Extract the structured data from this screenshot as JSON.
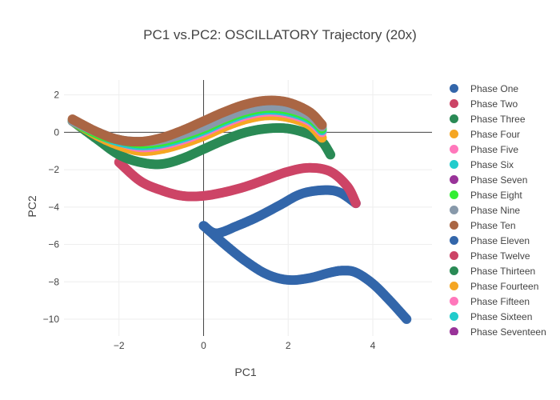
{
  "chart_data": {
    "type": "scatter",
    "title": "PC1 vs.PC2: OSCILLATORY Trajectory (20x)",
    "xlabel": "PC1",
    "ylabel": "PC2",
    "xlim": [
      -3.3,
      5.4
    ],
    "ylim": [
      -10.9,
      2.8
    ],
    "x_ticks": [
      -2,
      0,
      2,
      4
    ],
    "y_ticks": [
      2,
      0,
      -2,
      -4,
      -6,
      -8,
      -10
    ],
    "grid": true,
    "legend_position": "right",
    "series": [
      {
        "name": "Phase One",
        "color": "#3366aa",
        "marker": "circle",
        "x": [
          0.0,
          0.3,
          0.8,
          1.3,
          1.8,
          2.3,
          2.8,
          3.2,
          3.6
        ],
        "y": [
          -5.0,
          -5.4,
          -5.0,
          -4.5,
          -3.9,
          -3.3,
          -3.1,
          -3.2,
          -3.8
        ]
      },
      {
        "name": "Phase Two",
        "color": "#cc4466",
        "marker": "circle",
        "x": [
          -2.0,
          -1.5,
          -1.0,
          -0.5,
          0.0,
          0.5,
          1.0,
          1.5,
          2.0,
          2.5,
          3.0,
          3.4,
          3.6
        ],
        "y": [
          -1.6,
          -2.6,
          -3.1,
          -3.4,
          -3.4,
          -3.2,
          -2.9,
          -2.5,
          -2.1,
          -1.9,
          -2.1,
          -2.9,
          -3.8
        ]
      },
      {
        "name": "Phase Three",
        "color": "#2a8a55",
        "marker": "circle",
        "x": [
          -3.1,
          -2.5,
          -2.0,
          -1.5,
          -1.0,
          -0.5,
          0.0,
          0.5,
          1.0,
          1.5,
          2.0,
          2.5,
          2.8,
          3.0
        ],
        "y": [
          0.6,
          -0.4,
          -1.2,
          -1.6,
          -1.7,
          -1.4,
          -0.9,
          -0.4,
          0.0,
          0.2,
          0.2,
          -0.1,
          -0.5,
          -1.2
        ]
      },
      {
        "name": "Phase Four",
        "color": "#f5a623",
        "marker": "circle",
        "x": [
          -3.1,
          -2.5,
          -2.0,
          -1.5,
          -1.0,
          -0.5,
          0.0,
          0.5,
          1.0,
          1.5,
          2.0,
          2.5,
          2.8
        ],
        "y": [
          0.6,
          -0.2,
          -0.7,
          -1.0,
          -0.9,
          -0.6,
          -0.2,
          0.3,
          0.7,
          0.9,
          0.8,
          0.4,
          -0.3
        ]
      },
      {
        "name": "Phase Five",
        "color": "#ff77bb",
        "marker": "circle",
        "x": [
          -3.1,
          -2.5,
          -2.0,
          -1.5,
          -1.0,
          -0.5,
          0.0,
          0.5,
          1.0,
          1.5,
          2.0,
          2.5,
          2.8
        ],
        "y": [
          0.6,
          -0.1,
          -0.5,
          -0.8,
          -0.7,
          -0.4,
          0.0,
          0.5,
          0.9,
          1.1,
          1.0,
          0.6,
          0.0
        ]
      },
      {
        "name": "Phase Six",
        "color": "#22cccc",
        "marker": "circle",
        "x": [
          -3.1,
          -2.5,
          -2.0,
          -1.5,
          -1.0,
          -0.5,
          0.0,
          0.5,
          1.0,
          1.5,
          2.0,
          2.5,
          2.8
        ],
        "y": [
          0.6,
          -0.1,
          -0.5,
          -0.7,
          -0.6,
          -0.3,
          0.1,
          0.6,
          1.0,
          1.2,
          1.1,
          0.7,
          0.1
        ]
      },
      {
        "name": "Phase Seven",
        "color": "#993399",
        "marker": "circle",
        "x": [
          -3.1,
          -2.5,
          -2.0,
          -1.5,
          -1.0,
          -0.5,
          0.0,
          0.5,
          1.0,
          1.5,
          2.0,
          2.5,
          2.8
        ],
        "y": [
          0.6,
          -0.1,
          -0.4,
          -0.6,
          -0.5,
          -0.2,
          0.2,
          0.7,
          1.1,
          1.3,
          1.2,
          0.8,
          0.2
        ]
      },
      {
        "name": "Phase Eight",
        "color": "#33ee33",
        "marker": "circle",
        "x": [
          -3.1,
          -2.5,
          -2.0,
          -1.5,
          -1.0,
          -0.5,
          0.0,
          0.5,
          1.0,
          1.5,
          2.0,
          2.5,
          2.8
        ],
        "y": [
          0.6,
          -0.1,
          -0.4,
          -0.6,
          -0.5,
          -0.2,
          0.2,
          0.7,
          1.1,
          1.3,
          1.2,
          0.8,
          0.2
        ]
      },
      {
        "name": "Phase Nine",
        "color": "#8899aa",
        "marker": "circle",
        "x": [
          -3.1,
          -2.5,
          -2.0,
          -1.5,
          -1.0,
          -0.5,
          0.0,
          0.5,
          1.0,
          1.5,
          2.0,
          2.5,
          2.8
        ],
        "y": [
          0.6,
          0.0,
          -0.4,
          -0.5,
          -0.4,
          -0.1,
          0.3,
          0.8,
          1.2,
          1.4,
          1.3,
          0.9,
          0.3
        ]
      },
      {
        "name": "Phase Ten",
        "color": "#aa6644",
        "marker": "circle",
        "x": [
          -3.1,
          -2.5,
          -2.0,
          -1.5,
          -1.0,
          -0.5,
          0.0,
          0.5,
          1.0,
          1.5,
          2.0,
          2.5,
          2.8
        ],
        "y": [
          0.7,
          0.0,
          -0.4,
          -0.5,
          -0.3,
          0.1,
          0.6,
          1.1,
          1.5,
          1.7,
          1.6,
          1.1,
          0.4
        ]
      },
      {
        "name": "Phase Eleven",
        "color": "#3366aa",
        "marker": "circle",
        "x": [
          0.0,
          0.5,
          1.0,
          1.5,
          2.0,
          2.5,
          3.0,
          3.3,
          3.6,
          4.0,
          4.4,
          4.8
        ],
        "y": [
          -5.0,
          -6.0,
          -6.9,
          -7.6,
          -7.9,
          -7.8,
          -7.5,
          -7.4,
          -7.5,
          -8.1,
          -9.0,
          -10.0
        ]
      },
      {
        "name": "Phase Twelve",
        "color": "#cc4466",
        "marker": "circle",
        "x": [],
        "y": []
      },
      {
        "name": "Phase Thirteen",
        "color": "#2a8a55",
        "marker": "circle",
        "x": [],
        "y": []
      },
      {
        "name": "Phase Fourteen",
        "color": "#f5a623",
        "marker": "circle",
        "x": [],
        "y": []
      },
      {
        "name": "Phase Fifteen",
        "color": "#ff77bb",
        "marker": "circle",
        "x": [],
        "y": []
      },
      {
        "name": "Phase Sixteen",
        "color": "#22cccc",
        "marker": "circle",
        "x": [],
        "y": []
      },
      {
        "name": "Phase Seventeen",
        "color": "#993399",
        "marker": "circle",
        "x": [],
        "y": []
      }
    ]
  }
}
